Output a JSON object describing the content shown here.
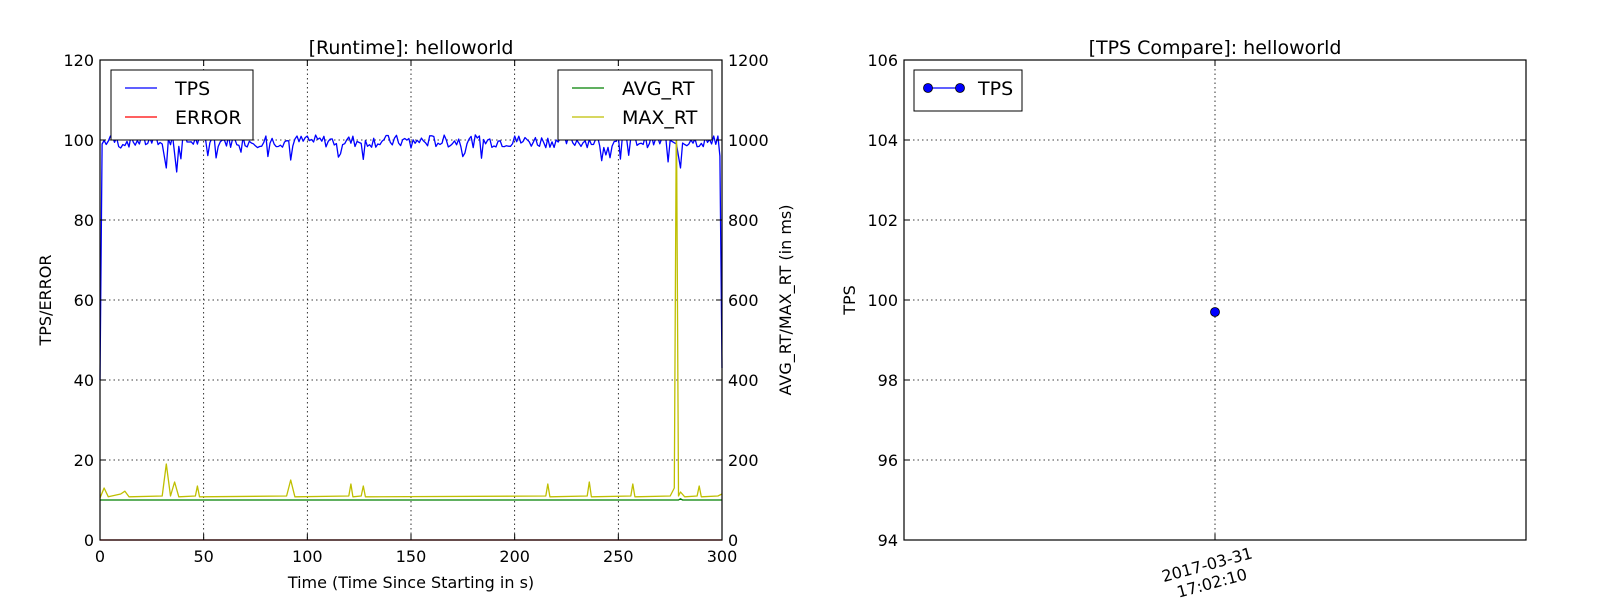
{
  "chart_data": [
    {
      "type": "line",
      "title": "[Runtime]: helloworld",
      "xlabel": "Time (Time Since Starting in s)",
      "ylabel": "TPS/ERROR",
      "y2label": "AVG_RT/MAX_RT (in ms)",
      "xlim": [
        0,
        300
      ],
      "ylim": [
        0,
        120
      ],
      "y2lim": [
        0,
        1200
      ],
      "xticks": [
        "0",
        "50",
        "100",
        "150",
        "200",
        "250",
        "300"
      ],
      "yticks": [
        "0",
        "20",
        "40",
        "60",
        "80",
        "100",
        "120"
      ],
      "y2ticks": [
        "0",
        "200",
        "400",
        "600",
        "800",
        "1000",
        "1200"
      ],
      "grid": true,
      "legend_left_placement": "upper-left",
      "legend_right_placement": "upper-right",
      "series": [
        {
          "name": "TPS",
          "axis": "left",
          "color": "#0000ff",
          "note": "fluctuates 93-102, mean ~99.7",
          "points": [
            [
              0,
              40
            ],
            [
              1,
              99
            ],
            [
              5,
              101
            ],
            [
              10,
              98
            ],
            [
              20,
              101
            ],
            [
              30,
              99
            ],
            [
              32,
              93
            ],
            [
              35,
              101
            ],
            [
              37,
              92
            ],
            [
              40,
              101
            ],
            [
              60,
              100
            ],
            [
              80,
              101
            ],
            [
              92,
              95
            ],
            [
              100,
              101
            ],
            [
              150,
              98
            ],
            [
              200,
              101
            ],
            [
              220,
              100
            ],
            [
              250,
              101
            ],
            [
              275,
              100
            ],
            [
              278,
              99
            ],
            [
              280,
              93
            ],
            [
              285,
              100
            ],
            [
              295,
              99
            ],
            [
              298,
              101
            ],
            [
              299,
              96
            ],
            [
              300,
              43
            ]
          ]
        },
        {
          "name": "ERROR",
          "axis": "left",
          "color": "#ff0000",
          "points": [
            [
              0,
              0
            ],
            [
              300,
              0
            ]
          ]
        },
        {
          "name": "AVG_RT",
          "axis": "right",
          "color": "#008000",
          "points": [
            [
              0,
              100
            ],
            [
              279,
              100
            ],
            [
              280,
              103
            ],
            [
              281,
              100
            ],
            [
              300,
              100
            ]
          ]
        },
        {
          "name": "MAX_RT",
          "axis": "right",
          "color": "#bfbf00",
          "points": [
            [
              0,
              105
            ],
            [
              2,
              130
            ],
            [
              4,
              108
            ],
            [
              10,
              115
            ],
            [
              12,
              122
            ],
            [
              14,
              108
            ],
            [
              30,
              110
            ],
            [
              32,
              190
            ],
            [
              34,
              110
            ],
            [
              36,
              145
            ],
            [
              38,
              108
            ],
            [
              46,
              110
            ],
            [
              47,
              135
            ],
            [
              48,
              108
            ],
            [
              90,
              110
            ],
            [
              92,
              150
            ],
            [
              94,
              108
            ],
            [
              120,
              110
            ],
            [
              121,
              140
            ],
            [
              122,
              108
            ],
            [
              126,
              110
            ],
            [
              127,
              135
            ],
            [
              128,
              108
            ],
            [
              215,
              110
            ],
            [
              216,
              140
            ],
            [
              217,
              108
            ],
            [
              235,
              110
            ],
            [
              236,
              145
            ],
            [
              237,
              108
            ],
            [
              256,
              110
            ],
            [
              257,
              140
            ],
            [
              258,
              108
            ],
            [
              275,
              110
            ],
            [
              277,
              130
            ],
            [
              278,
              1090
            ],
            [
              279,
              110
            ],
            [
              280,
              120
            ],
            [
              282,
              108
            ],
            [
              288,
              110
            ],
            [
              289,
              135
            ],
            [
              290,
              108
            ],
            [
              298,
              110
            ],
            [
              300,
              115
            ]
          ]
        }
      ]
    },
    {
      "type": "line",
      "title": "[TPS Compare]: helloworld",
      "xlabel": "",
      "ylabel": "TPS",
      "ylim": [
        94,
        106
      ],
      "yticks": [
        "94",
        "96",
        "98",
        "100",
        "102",
        "104",
        "106"
      ],
      "xticks": [
        "2017-03-31\n17:02:10"
      ],
      "grid": true,
      "legend_placement": "upper-left",
      "series": [
        {
          "name": "TPS",
          "color": "#0000ff",
          "marker": "circle",
          "points": [
            [
              "2017-03-31 17:02:10",
              99.7
            ]
          ]
        }
      ]
    }
  ]
}
